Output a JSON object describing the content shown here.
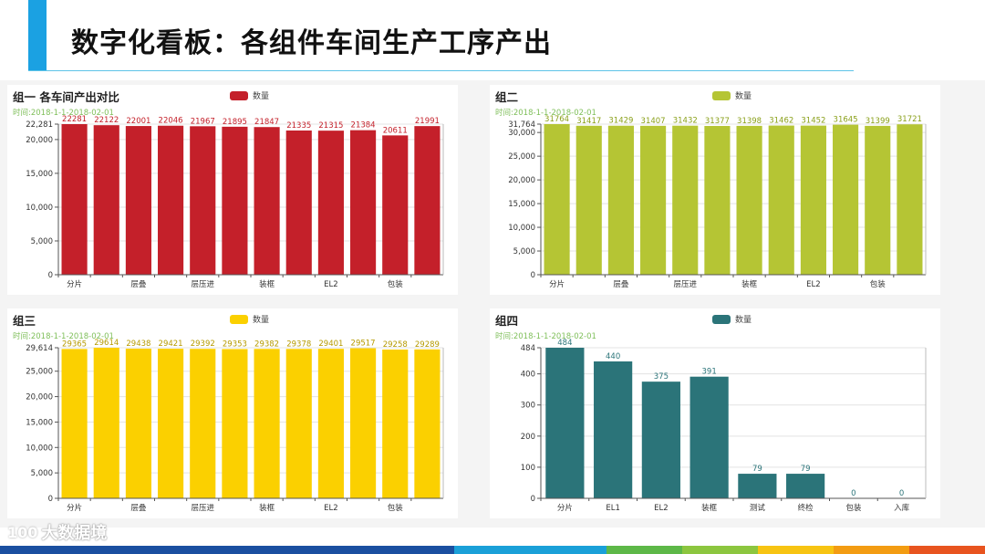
{
  "page": {
    "title": "数字化看板：各组件车间生产工序产出"
  },
  "watermark": {
    "logo": "100",
    "text": "大数据境"
  },
  "colors": {
    "accent": "#1ba1e2"
  },
  "footer_colors": [
    "#1a4fa0",
    "#1a4fa0",
    "#1a4fa0",
    "#1a4fa0",
    "#1a4fa0",
    "#1a4fa0",
    "#1aa0d8",
    "#1aa0d8",
    "#5db848",
    "#8cc63f",
    "#f7c412",
    "#f39c12",
    "#e8541f"
  ],
  "chart_data": [
    {
      "type": "bar",
      "title": "组一 各车间产出对比",
      "subtitle": "时间:2018-1-1-2018-02-01",
      "legend": "数量",
      "color": "#c4202a",
      "label_color": "#c4202a",
      "categories": [
        "分片",
        "",
        "层叠",
        "",
        "层压进",
        "",
        "装框",
        "",
        "EL2",
        "",
        "包装",
        ""
      ],
      "values": [
        22281,
        22122,
        22001,
        22046,
        21967,
        21895,
        21847,
        21335,
        21315,
        21384,
        20611,
        21991
      ],
      "ymax": 22281,
      "ymax_label": "22,281",
      "yticks": [
        0,
        5000,
        10000,
        15000,
        20000
      ],
      "ytick_labels": [
        "0",
        "5,000",
        "10,000",
        "15,000",
        "20,000"
      ]
    },
    {
      "type": "bar",
      "title": "组二",
      "subtitle": "时间:2018-1-1-2018-02-01",
      "legend": "数量",
      "color": "#b5c534",
      "label_color": "#8aa01a",
      "categories": [
        "分片",
        "",
        "层叠",
        "",
        "层压进",
        "",
        "装框",
        "",
        "EL2",
        "",
        "包装",
        ""
      ],
      "values": [
        31764,
        31417,
        31429,
        31407,
        31432,
        31377,
        31398,
        31462,
        31452,
        31645,
        31399,
        31721
      ],
      "ymax": 31764,
      "ymax_label": "31,764",
      "yticks": [
        0,
        5000,
        10000,
        15000,
        20000,
        25000,
        30000
      ],
      "ytick_labels": [
        "0",
        "5,000",
        "10,000",
        "15,000",
        "20,000",
        "25,000",
        "30,000"
      ]
    },
    {
      "type": "bar",
      "title": "组三",
      "subtitle": "时间:2018-1-1-2018-02-01",
      "legend": "数量",
      "color": "#fbd000",
      "label_color": "#b59a00",
      "categories": [
        "分片",
        "",
        "层叠",
        "",
        "层压进",
        "",
        "装框",
        "",
        "EL2",
        "",
        "包装",
        ""
      ],
      "values": [
        29365,
        29614,
        29438,
        29421,
        29392,
        29353,
        29382,
        29378,
        29401,
        29517,
        29258,
        29289
      ],
      "ymax": 29614,
      "ymax_label": "29,614",
      "yticks": [
        0,
        5000,
        10000,
        15000,
        20000,
        25000
      ],
      "ytick_labels": [
        "0",
        "5,000",
        "10,000",
        "15,000",
        "20,000",
        "25,000"
      ]
    },
    {
      "type": "bar",
      "title": "组四",
      "subtitle": "时间:2018-1-1-2018-02-01",
      "legend": "数量",
      "color": "#2b7479",
      "label_color": "#2b7479",
      "categories": [
        "分片",
        "EL1",
        "EL2",
        "装框",
        "测试",
        "终检",
        "包装",
        "入库"
      ],
      "values": [
        484,
        440,
        375,
        391,
        79,
        79,
        0,
        0
      ],
      "ymax": 484,
      "ymax_label": "484",
      "yticks": [
        0,
        100,
        200,
        300,
        400
      ],
      "ytick_labels": [
        "0",
        "100",
        "200",
        "300",
        "400"
      ]
    }
  ]
}
